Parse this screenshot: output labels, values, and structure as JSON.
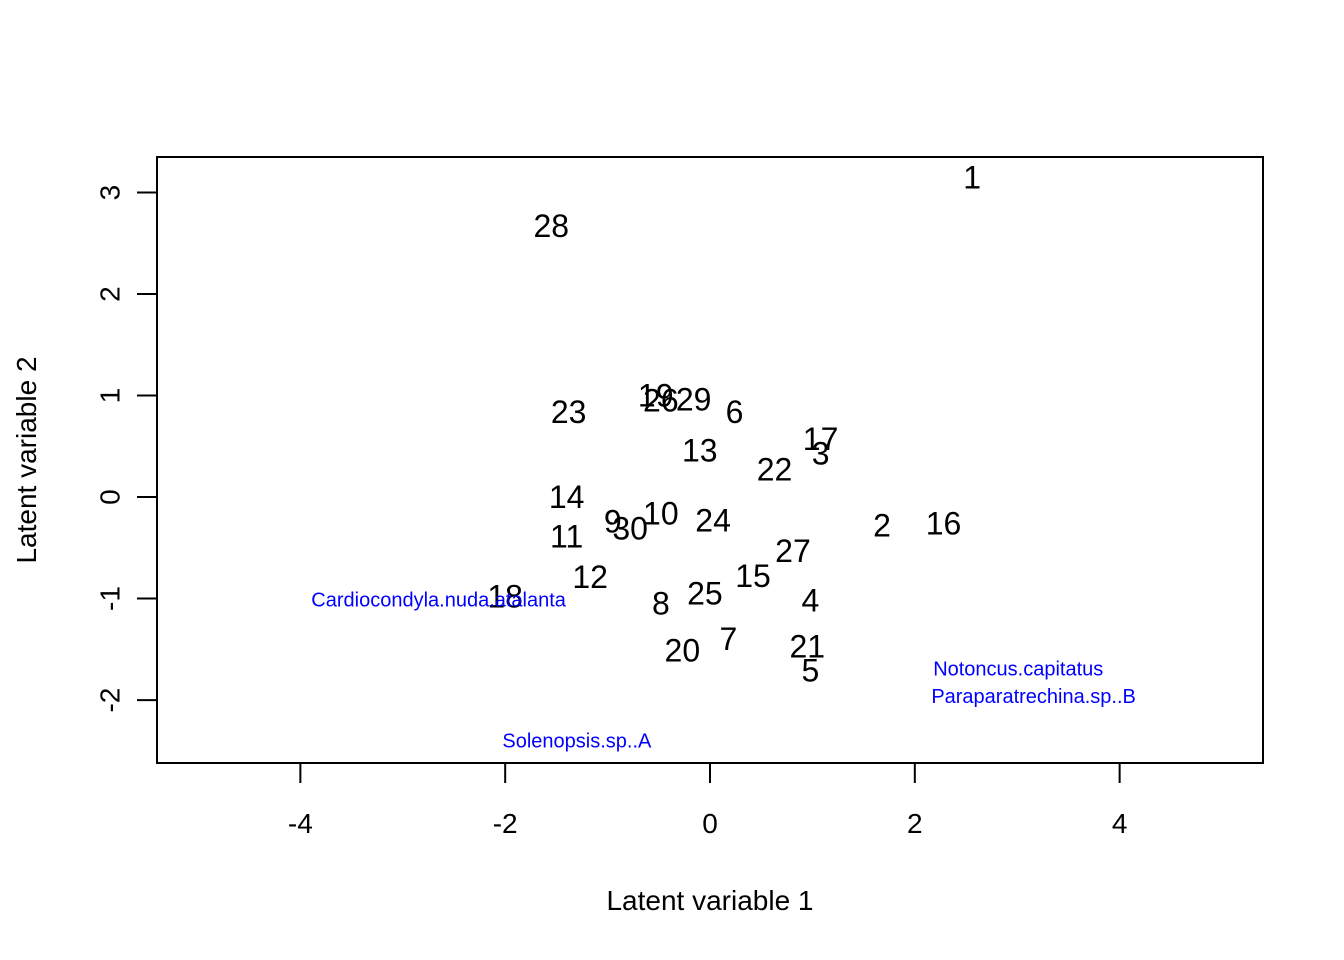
{
  "chart_data": {
    "type": "scatter",
    "title": "",
    "xlabel": "Latent variable  1",
    "ylabel": "Latent variable  2",
    "xlim": [
      -5.4,
      5.4
    ],
    "ylim": [
      -2.62,
      3.35
    ],
    "x_ticks": [
      -4,
      -2,
      0,
      2,
      4
    ],
    "x_tick_labels": [
      "-4",
      "-2",
      "0",
      "2",
      "4"
    ],
    "y_ticks": [
      -2,
      -1,
      0,
      1,
      2,
      3
    ],
    "y_tick_labels": [
      "-2",
      "-1",
      "0",
      "1",
      "2",
      "3"
    ],
    "grid": false,
    "legend": "none",
    "site_color": "#000000",
    "species_color": "#0000ff",
    "sites": [
      {
        "label": "1",
        "x": 2.56,
        "y": 3.15
      },
      {
        "label": "28",
        "x": -1.55,
        "y": 2.67
      },
      {
        "label": "19",
        "x": -0.53,
        "y": 1.0
      },
      {
        "label": "26",
        "x": -0.48,
        "y": 0.95
      },
      {
        "label": "29",
        "x": -0.16,
        "y": 0.96
      },
      {
        "label": "6",
        "x": 0.24,
        "y": 0.84
      },
      {
        "label": "23",
        "x": -1.38,
        "y": 0.84
      },
      {
        "label": "17",
        "x": 1.08,
        "y": 0.57
      },
      {
        "label": "3",
        "x": 1.08,
        "y": 0.43
      },
      {
        "label": "13",
        "x": -0.1,
        "y": 0.46
      },
      {
        "label": "22",
        "x": 0.63,
        "y": 0.27
      },
      {
        "label": "14",
        "x": -1.4,
        "y": 0.0
      },
      {
        "label": "10",
        "x": -0.48,
        "y": -0.16
      },
      {
        "label": "9",
        "x": -0.95,
        "y": -0.24
      },
      {
        "label": "30",
        "x": -0.78,
        "y": -0.31
      },
      {
        "label": "24",
        "x": 0.03,
        "y": -0.23
      },
      {
        "label": "2",
        "x": 1.68,
        "y": -0.28
      },
      {
        "label": "16",
        "x": 2.28,
        "y": -0.26
      },
      {
        "label": "11",
        "x": -1.4,
        "y": -0.39
      },
      {
        "label": "27",
        "x": 0.81,
        "y": -0.53
      },
      {
        "label": "12",
        "x": -1.17,
        "y": -0.79
      },
      {
        "label": "15",
        "x": 0.42,
        "y": -0.78
      },
      {
        "label": "18",
        "x": -2.0,
        "y": -0.98
      },
      {
        "label": "25",
        "x": -0.05,
        "y": -0.95
      },
      {
        "label": "8",
        "x": -0.48,
        "y": -1.05
      },
      {
        "label": "4",
        "x": 0.98,
        "y": -1.02
      },
      {
        "label": "7",
        "x": 0.18,
        "y": -1.4
      },
      {
        "label": "21",
        "x": 0.95,
        "y": -1.47
      },
      {
        "label": "20",
        "x": -0.27,
        "y": -1.51
      },
      {
        "label": "5",
        "x": 0.98,
        "y": -1.71
      }
    ],
    "species": [
      {
        "label": "Cardiocondyla.nuda.atalanta",
        "x": -2.65,
        "y": -1.02
      },
      {
        "label": "Notoncus.capitatus",
        "x": 3.01,
        "y": -1.7
      },
      {
        "label": "Paraparatrechina.sp..B",
        "x": 3.16,
        "y": -1.97
      },
      {
        "label": "Solenopsis.sp..A",
        "x": -1.3,
        "y": -2.41
      }
    ]
  }
}
